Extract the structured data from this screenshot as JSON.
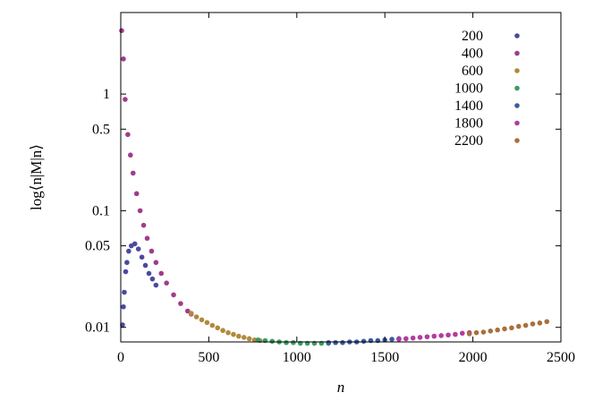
{
  "chart_data": {
    "type": "scatter",
    "title": "",
    "xlabel": "n",
    "ylabel": "log⟨n|M|n⟩",
    "xscale": "linear",
    "yscale": "log",
    "xlim": [
      0,
      2500
    ],
    "ylim": [
      0.0075,
      5.0
    ],
    "grid": false,
    "legend_position": "top-right",
    "x_ticks": [
      {
        "value": 0,
        "label": "0"
      },
      {
        "value": 500,
        "label": "500"
      },
      {
        "value": 1000,
        "label": "1000"
      },
      {
        "value": 1500,
        "label": "1500"
      },
      {
        "value": 2000,
        "label": "2000"
      },
      {
        "value": 2500,
        "label": "2500"
      }
    ],
    "y_ticks": [
      {
        "value": 0.01,
        "label": "0.01"
      },
      {
        "value": 0.05,
        "label": "0.05"
      },
      {
        "value": 0.1,
        "label": "0.1"
      },
      {
        "value": 0.5,
        "label": "0.5"
      },
      {
        "value": 1,
        "label": "1"
      }
    ],
    "series": [
      {
        "name": "200",
        "color": "#4a4aa0",
        "x": [
          10,
          15,
          20,
          28,
          35,
          45,
          60,
          80,
          100,
          120,
          140,
          160,
          180,
          200
        ],
        "y": [
          0.0105,
          0.015,
          0.02,
          0.03,
          0.036,
          0.045,
          0.05,
          0.052,
          0.047,
          0.04,
          0.034,
          0.029,
          0.026,
          0.023
        ]
      },
      {
        "name": "400",
        "color": "#a03c8c",
        "x": [
          5,
          15,
          25,
          40,
          55,
          70,
          90,
          110,
          130,
          150,
          175,
          200,
          230,
          260,
          300,
          340,
          380,
          400
        ],
        "y": [
          3.5,
          2.0,
          0.9,
          0.45,
          0.3,
          0.21,
          0.14,
          0.1,
          0.075,
          0.058,
          0.045,
          0.036,
          0.029,
          0.024,
          0.019,
          0.016,
          0.0138,
          0.013
        ]
      },
      {
        "name": "600",
        "color": "#b08a3c",
        "x": [
          400,
          430,
          460,
          490,
          520,
          550,
          580,
          610,
          640,
          670,
          700,
          730,
          760,
          790
        ],
        "y": [
          0.0132,
          0.0123,
          0.0116,
          0.011,
          0.0104,
          0.0099,
          0.0094,
          0.009,
          0.0087,
          0.0084,
          0.0082,
          0.008,
          0.0078,
          0.0077
        ]
      },
      {
        "name": "1000",
        "color": "#3c9a64",
        "x": [
          780,
          820,
          860,
          900,
          940,
          980,
          1020,
          1060,
          1100,
          1140,
          1180
        ],
        "y": [
          0.0078,
          0.0077,
          0.0076,
          0.0075,
          0.0074,
          0.0074,
          0.0073,
          0.0073,
          0.0073,
          0.0073,
          0.0073
        ]
      },
      {
        "name": "1400",
        "color": "#3c5aa0",
        "x": [
          1180,
          1220,
          1260,
          1300,
          1340,
          1380,
          1420,
          1460,
          1500,
          1540,
          1580
        ],
        "y": [
          0.0074,
          0.0074,
          0.0074,
          0.0075,
          0.0075,
          0.0076,
          0.0077,
          0.0077,
          0.0078,
          0.0079,
          0.008
        ]
      },
      {
        "name": "1800",
        "color": "#b03ca0",
        "x": [
          1580,
          1620,
          1660,
          1700,
          1740,
          1780,
          1820,
          1860,
          1900,
          1940,
          1980
        ],
        "y": [
          0.0079,
          0.008,
          0.0081,
          0.0082,
          0.0083,
          0.0084,
          0.0085,
          0.0086,
          0.0087,
          0.0089,
          0.009
        ]
      },
      {
        "name": "2200",
        "color": "#a8703c",
        "x": [
          1980,
          2020,
          2060,
          2100,
          2140,
          2180,
          2220,
          2260,
          2300,
          2340,
          2380,
          2420
        ],
        "y": [
          0.0088,
          0.009,
          0.0091,
          0.0093,
          0.0095,
          0.0097,
          0.0099,
          0.0102,
          0.0104,
          0.0107,
          0.0109,
          0.0112
        ]
      }
    ]
  }
}
